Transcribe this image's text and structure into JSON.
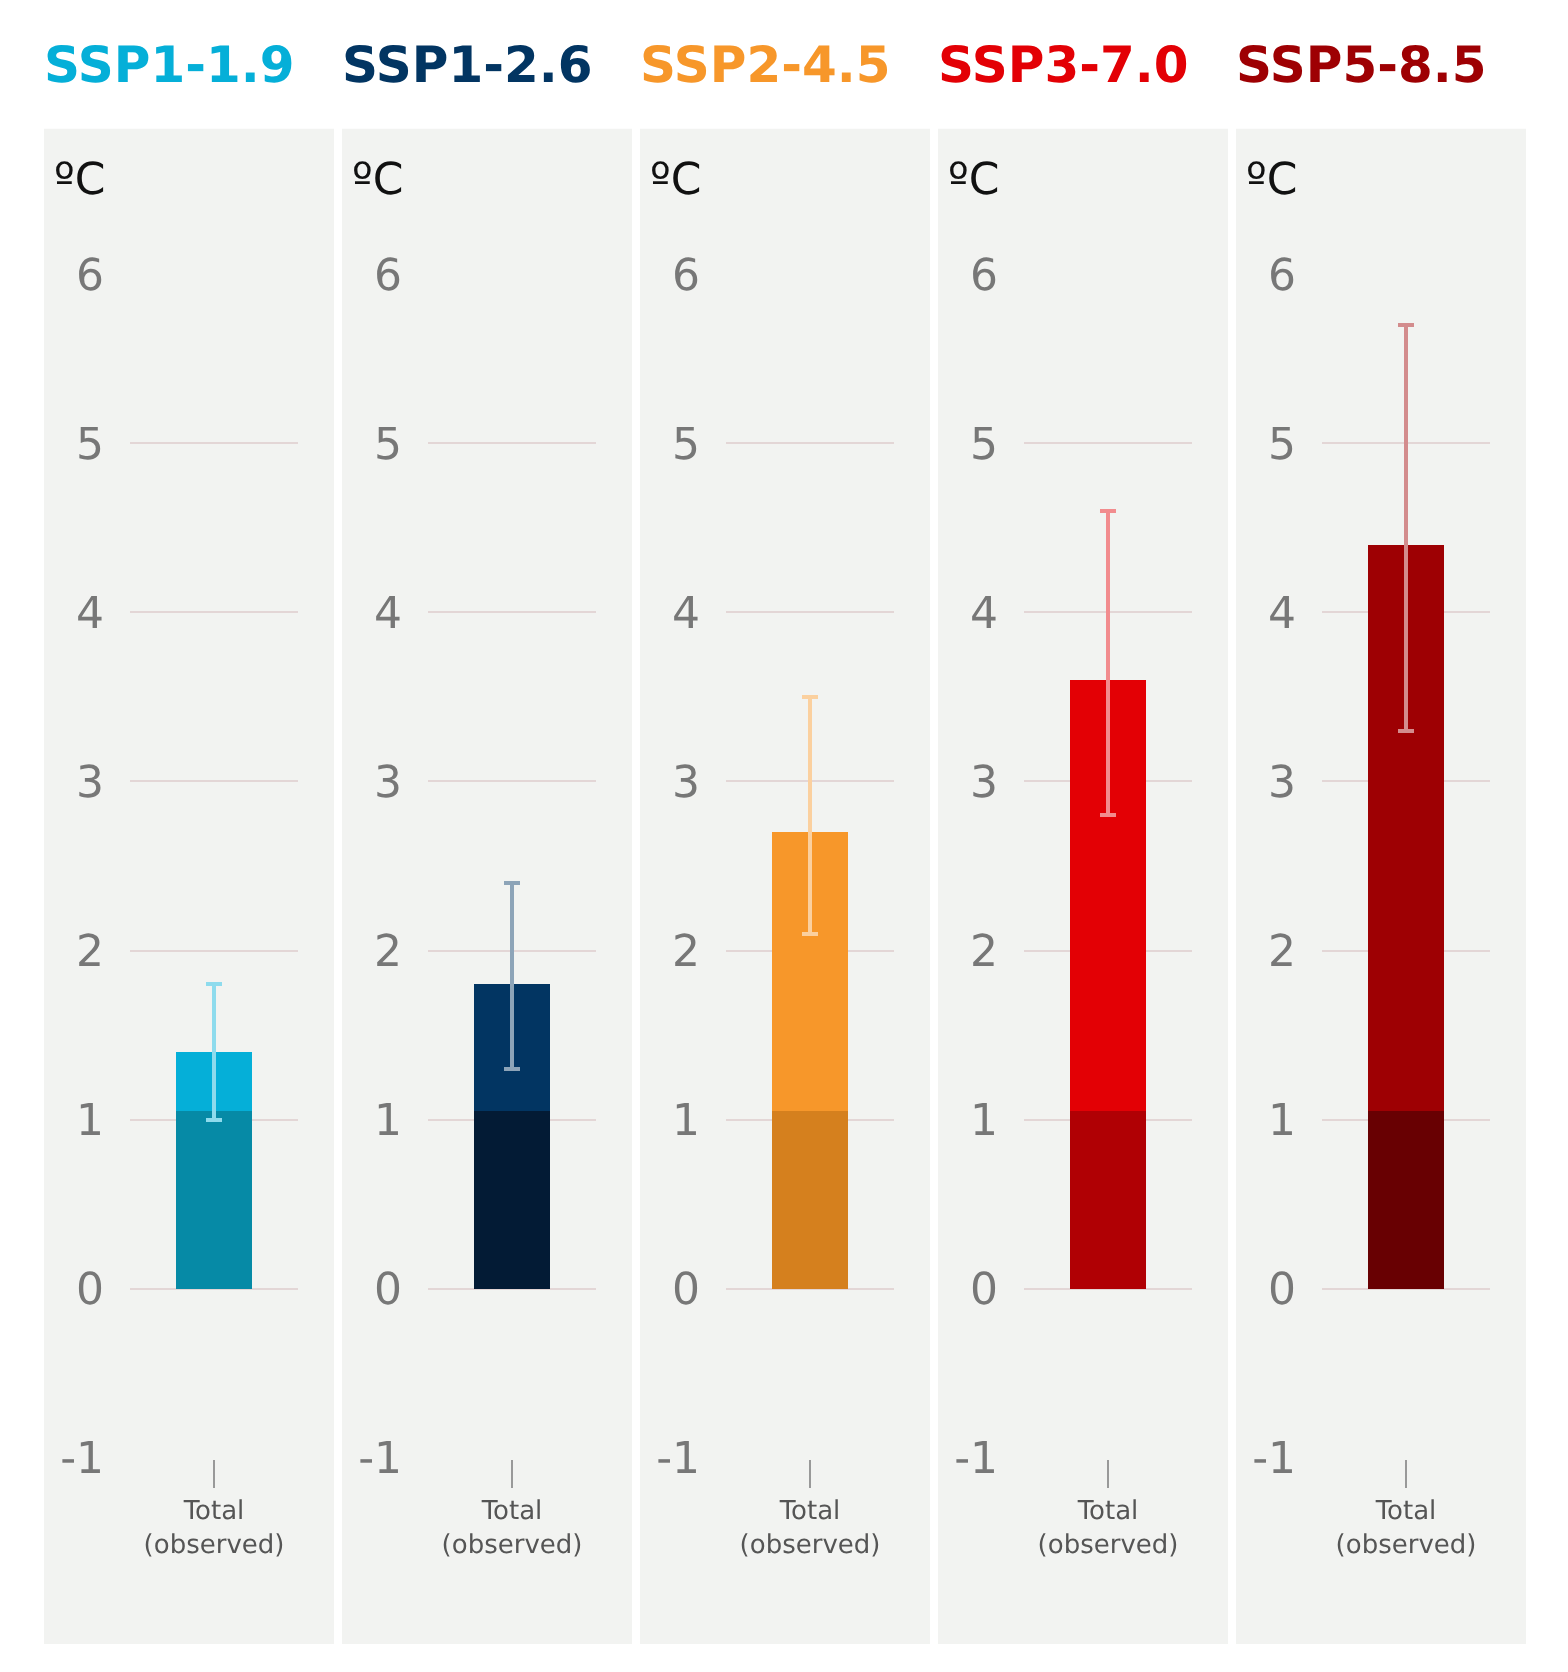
{
  "chart_data": [
    {
      "type": "bar",
      "title": "SSP1-1.9",
      "ylabel": "ºC",
      "categories": [
        "Total\n(observed)"
      ],
      "stacked": true,
      "ylim": [
        -1,
        6
      ],
      "yticks": [
        -1,
        0,
        1,
        2,
        3,
        4,
        5,
        6
      ],
      "grid": "y",
      "series": [
        {
          "color": "#068aa6",
          "values": [
            1.05
          ]
        },
        {
          "color": "#05afd8",
          "values": [
            0.35
          ],
          "errors": [
            [
              1.0,
              1.8
            ]
          ]
        }
      ]
    },
    {
      "type": "bar",
      "title": "SSP1-2.6",
      "ylabel": "ºC",
      "categories": [
        "Total\n(observed)"
      ],
      "stacked": true,
      "ylim": [
        -1,
        6
      ],
      "yticks": [
        -1,
        0,
        1,
        2,
        3,
        4,
        5,
        6
      ],
      "grid": "y",
      "series": [
        {
          "color": "#031b35",
          "values": [
            1.05
          ]
        },
        {
          "color": "#023562",
          "values": [
            0.75
          ],
          "errors": [
            [
              1.3,
              2.4
            ]
          ]
        }
      ]
    },
    {
      "type": "bar",
      "title": "SSP2-4.5",
      "ylabel": "ºC",
      "categories": [
        "Total\n(observed)"
      ],
      "stacked": true,
      "ylim": [
        -1,
        6
      ],
      "yticks": [
        -1,
        0,
        1,
        2,
        3,
        4,
        5,
        6
      ],
      "grid": "y",
      "series": [
        {
          "color": "#d5801e",
          "values": [
            1.05
          ]
        },
        {
          "color": "#f7972a",
          "values": [
            1.65
          ],
          "errors": [
            [
              2.1,
              3.5
            ]
          ]
        }
      ]
    },
    {
      "type": "bar",
      "title": "SSP3-7.0",
      "ylabel": "ºC",
      "categories": [
        "Total\n(observed)"
      ],
      "stacked": true,
      "ylim": [
        -1,
        6
      ],
      "yticks": [
        -1,
        0,
        1,
        2,
        3,
        4,
        5,
        6
      ],
      "grid": "y",
      "series": [
        {
          "color": "#b00004",
          "values": [
            1.05
          ]
        },
        {
          "color": "#e30005",
          "values": [
            2.55
          ],
          "errors": [
            [
              2.8,
              4.6
            ]
          ]
        }
      ]
    },
    {
      "type": "bar",
      "title": "SSP5-8.5",
      "ylabel": "ºC",
      "categories": [
        "Total\n(observed)"
      ],
      "stacked": true,
      "ylim": [
        -1,
        6
      ],
      "yticks": [
        -1,
        0,
        1,
        2,
        3,
        4,
        5,
        6
      ],
      "grid": "y",
      "series": [
        {
          "color": "#680002",
          "values": [
            1.05
          ]
        },
        {
          "color": "#9e0003",
          "values": [
            3.35
          ],
          "errors": [
            [
              3.3,
              5.7
            ]
          ]
        }
      ]
    }
  ]
}
